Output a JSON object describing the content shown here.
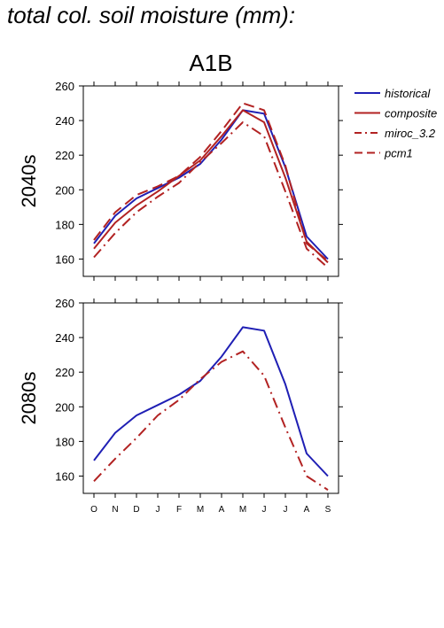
{
  "page": {
    "title": "total col. soil moisture (mm):"
  },
  "colors": {
    "historical": "#1f1fb4",
    "scenario": "#b22222",
    "axis": "#000000"
  },
  "chart_data": {
    "type": "line",
    "title": "A1B",
    "categories": [
      "O",
      "N",
      "D",
      "J",
      "F",
      "M",
      "A",
      "M",
      "J",
      "J",
      "A",
      "S"
    ],
    "ylim": [
      150,
      260
    ],
    "yticks": [
      160,
      180,
      200,
      220,
      240,
      260
    ],
    "legend": {
      "placement": "right",
      "entries": [
        {
          "label": "historical",
          "color": "#1f1fb4",
          "style": "solid"
        },
        {
          "label": "composite",
          "color": "#b22222",
          "style": "solid"
        },
        {
          "label": "miroc_3.2",
          "color": "#b22222",
          "style": "dashdot"
        },
        {
          "label": "pcm1",
          "color": "#b22222",
          "style": "dash"
        }
      ]
    },
    "panels": [
      {
        "label": "2040s",
        "series": [
          {
            "name": "historical",
            "values": [
              169,
              185,
              195,
              201,
              207,
              215,
              229,
              246,
              244,
              213,
              173,
              160
            ]
          },
          {
            "name": "composite",
            "values": [
              166,
              181,
              191,
              199,
              208,
              217,
              231,
              246,
              239,
              207,
              170,
              158
            ]
          },
          {
            "name": "miroc_3.2",
            "values": [
              161,
              175,
              187,
              196,
              204,
              216,
              227,
              239,
              231,
              199,
              166,
              155
            ]
          },
          {
            "name": "pcm1",
            "values": [
              171,
              187,
              197,
              202,
              208,
              219,
              234,
              250,
              246,
              214,
              169,
              159
            ]
          }
        ]
      },
      {
        "label": "2080s",
        "series": [
          {
            "name": "historical",
            "values": [
              169,
              185,
              195,
              201,
              207,
              215,
              229,
              246,
              244,
              213,
              173,
              160
            ]
          },
          {
            "name": "miroc_3.2",
            "values": [
              157,
              170,
              182,
              195,
              204,
              216,
              226,
              232,
              218,
              188,
              160,
              152
            ]
          }
        ]
      }
    ]
  }
}
